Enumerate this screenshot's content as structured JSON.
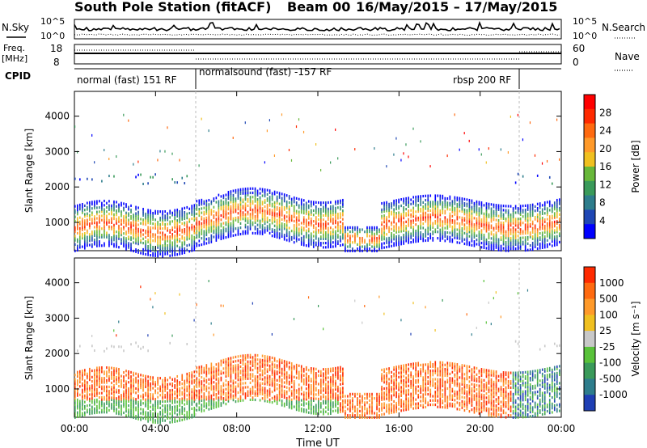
{
  "chart_data": {
    "type": "heatmap",
    "title": "South Pole Station (fitACF)",
    "beam": "Beam 00",
    "date_range": "16/May/2015 – 17/May/2015",
    "xlabel": "Time UT",
    "x_ticks": [
      "00:00",
      "04:00",
      "08:00",
      "12:00",
      "16:00",
      "20:00",
      "00:00"
    ],
    "x_range_hours": [
      0,
      24
    ],
    "header": {
      "nsky": {
        "label": "N.Sky",
        "ticks": [
          "10^5",
          "10^0"
        ]
      },
      "nsearch": {
        "label": "N.Search",
        "ticks": [
          "10^5",
          "10^0"
        ]
      },
      "freq": {
        "label_top": "Freq.",
        "label_unit": "[MHz]",
        "ticks": [
          "18",
          "8"
        ]
      },
      "nave": {
        "label": "Nave",
        "ticks": [
          "60",
          "0"
        ]
      },
      "cpid": {
        "label": "CPID",
        "segments": [
          {
            "start_h": 0,
            "end_h": 6,
            "text": "normal (fast) 151 RF"
          },
          {
            "start_h": 6,
            "end_h": 22,
            "text": "normalsound (fast) -157 RF"
          },
          {
            "start_h": 22,
            "end_h": 24,
            "text": "rbsp 200 RF"
          }
        ]
      }
    },
    "panels": [
      {
        "name": "Power",
        "ylabel": "Slant Range [km]",
        "y_ticks": [
          1000,
          2000,
          3000,
          4000
        ],
        "ylim": [
          200,
          4700
        ],
        "colorbar": {
          "label": "Power [dB]",
          "ticks": [
            "28",
            "24",
            "20",
            "16",
            "12",
            "8",
            "4"
          ],
          "colors": [
            "#0000ff",
            "#1f47b4",
            "#2e7d8c",
            "#3a9a5a",
            "#68b83a",
            "#f0c020",
            "#ff9a2a",
            "#ff6a10",
            "#ff2a00",
            "#ff0000"
          ]
        }
      },
      {
        "name": "Velocity",
        "ylabel": "Slant Range [km]",
        "y_ticks": [
          1000,
          2000,
          3000,
          4000
        ],
        "ylim": [
          200,
          4700
        ],
        "colorbar": {
          "label": "Velocity [m s⁻¹]",
          "ticks": [
            "1000",
            "500",
            "100",
            "25",
            "-25",
            "-100",
            "-500",
            "-1000"
          ],
          "colors": [
            "#1f3fb4",
            "#2e7d8c",
            "#3a9a5a",
            "#59c23a",
            "#c8c8c8",
            "#f0c020",
            "#ff9a2a",
            "#ff6a10",
            "#ff2a00"
          ]
        }
      }
    ]
  }
}
